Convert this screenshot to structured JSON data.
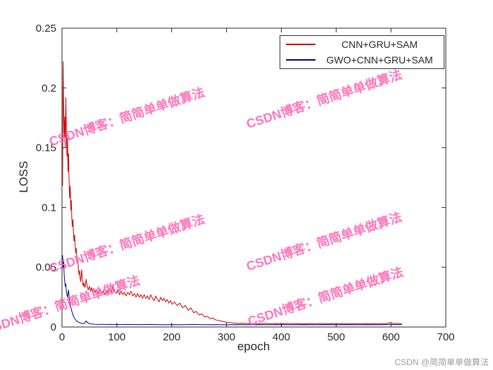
{
  "chart_data": {
    "type": "line",
    "title": "",
    "xlabel": "epoch",
    "ylabel": "LOSS",
    "xlim": [
      0,
      700
    ],
    "ylim": [
      0,
      0.25
    ],
    "grid": false,
    "legend_position": "top-right",
    "x_ticks": [
      0,
      100,
      200,
      300,
      400,
      500,
      600,
      700
    ],
    "x_tick_labels": [
      "0",
      "100",
      "200",
      "300",
      "400",
      "500",
      "600",
      "700"
    ],
    "y_ticks": [
      0,
      0.05,
      0.1,
      0.15,
      0.2,
      0.25
    ],
    "y_tick_labels": [
      "0",
      "0.05",
      "0.1",
      "0.15",
      "0.2",
      "0.25"
    ],
    "series": [
      {
        "name": "CNN+GRU+SAM",
        "color": "#cd0000",
        "points": [
          [
            1,
            0.118
          ],
          [
            2,
            0.222
          ],
          [
            3,
            0.185
          ],
          [
            4,
            0.158
          ],
          [
            5,
            0.176
          ],
          [
            6,
            0.15
          ],
          [
            7,
            0.192
          ],
          [
            8,
            0.165
          ],
          [
            9,
            0.143
          ],
          [
            10,
            0.158
          ],
          [
            11,
            0.13
          ],
          [
            12,
            0.145
          ],
          [
            13,
            0.122
          ],
          [
            14,
            0.108
          ],
          [
            15,
            0.118
          ],
          [
            16,
            0.098
          ],
          [
            17,
            0.106
          ],
          [
            18,
            0.09
          ],
          [
            19,
            0.084
          ],
          [
            20,
            0.09
          ],
          [
            21,
            0.078
          ],
          [
            22,
            0.072
          ],
          [
            23,
            0.077
          ],
          [
            24,
            0.068
          ],
          [
            25,
            0.062
          ],
          [
            26,
            0.066
          ],
          [
            27,
            0.058
          ],
          [
            28,
            0.053
          ],
          [
            29,
            0.056
          ],
          [
            30,
            0.048
          ],
          [
            31,
            0.044
          ],
          [
            32,
            0.047
          ],
          [
            33,
            0.041
          ],
          [
            34,
            0.038
          ],
          [
            35,
            0.044
          ],
          [
            36,
            0.048
          ],
          [
            37,
            0.04
          ],
          [
            38,
            0.036
          ],
          [
            39,
            0.034
          ],
          [
            40,
            0.037
          ],
          [
            42,
            0.033
          ],
          [
            44,
            0.04
          ],
          [
            46,
            0.034
          ],
          [
            48,
            0.031
          ],
          [
            50,
            0.034
          ],
          [
            52,
            0.03
          ],
          [
            54,
            0.033
          ],
          [
            56,
            0.029
          ],
          [
            58,
            0.032
          ],
          [
            60,
            0.029
          ],
          [
            63,
            0.031
          ],
          [
            66,
            0.028
          ],
          [
            69,
            0.031
          ],
          [
            72,
            0.028
          ],
          [
            75,
            0.03
          ],
          [
            78,
            0.027
          ],
          [
            81,
            0.03
          ],
          [
            84,
            0.028
          ],
          [
            87,
            0.032
          ],
          [
            90,
            0.029
          ],
          [
            93,
            0.035
          ],
          [
            96,
            0.03
          ],
          [
            99,
            0.028
          ],
          [
            102,
            0.031
          ],
          [
            105,
            0.027
          ],
          [
            108,
            0.03
          ],
          [
            111,
            0.027
          ],
          [
            114,
            0.029
          ],
          [
            117,
            0.026
          ],
          [
            120,
            0.029
          ],
          [
            123,
            0.027
          ],
          [
            126,
            0.03
          ],
          [
            129,
            0.026
          ],
          [
            132,
            0.028
          ],
          [
            135,
            0.025
          ],
          [
            138,
            0.028
          ],
          [
            141,
            0.025
          ],
          [
            144,
            0.027
          ],
          [
            147,
            0.024
          ],
          [
            150,
            0.027
          ],
          [
            153,
            0.024
          ],
          [
            156,
            0.026
          ],
          [
            159,
            0.023
          ],
          [
            162,
            0.027
          ],
          [
            165,
            0.024
          ],
          [
            168,
            0.022
          ],
          [
            171,
            0.026
          ],
          [
            174,
            0.023
          ],
          [
            177,
            0.021
          ],
          [
            180,
            0.025
          ],
          [
            183,
            0.022
          ],
          [
            186,
            0.024
          ],
          [
            189,
            0.021
          ],
          [
            192,
            0.023
          ],
          [
            195,
            0.02
          ],
          [
            198,
            0.022
          ],
          [
            201,
            0.019
          ],
          [
            205,
            0.021
          ],
          [
            210,
            0.018
          ],
          [
            215,
            0.02
          ],
          [
            220,
            0.016
          ],
          [
            225,
            0.018
          ],
          [
            230,
            0.014
          ],
          [
            235,
            0.016
          ],
          [
            240,
            0.012
          ],
          [
            245,
            0.013
          ],
          [
            250,
            0.01
          ],
          [
            255,
            0.011
          ],
          [
            260,
            0.0085
          ],
          [
            265,
            0.009
          ],
          [
            270,
            0.007
          ],
          [
            275,
            0.0075
          ],
          [
            280,
            0.006
          ],
          [
            285,
            0.0055
          ],
          [
            290,
            0.005
          ],
          [
            295,
            0.0045
          ],
          [
            300,
            0.004
          ],
          [
            310,
            0.0035
          ],
          [
            320,
            0.003
          ],
          [
            330,
            0.0032
          ],
          [
            340,
            0.0028
          ],
          [
            350,
            0.003
          ],
          [
            360,
            0.0028
          ],
          [
            370,
            0.003
          ],
          [
            380,
            0.0027
          ],
          [
            390,
            0.0029
          ],
          [
            400,
            0.0027
          ],
          [
            410,
            0.003
          ],
          [
            420,
            0.0027
          ],
          [
            430,
            0.0029
          ],
          [
            440,
            0.0026
          ],
          [
            450,
            0.0028
          ],
          [
            460,
            0.0026
          ],
          [
            470,
            0.0029
          ],
          [
            480,
            0.0026
          ],
          [
            490,
            0.0028
          ],
          [
            500,
            0.0026
          ],
          [
            510,
            0.0028
          ],
          [
            520,
            0.0026
          ],
          [
            530,
            0.0028
          ],
          [
            540,
            0.0026
          ],
          [
            550,
            0.0028
          ],
          [
            560,
            0.0026
          ],
          [
            570,
            0.0028
          ],
          [
            580,
            0.0026
          ],
          [
            590,
            0.0028
          ],
          [
            600,
            0.0038
          ],
          [
            605,
            0.0028
          ],
          [
            610,
            0.003
          ],
          [
            615,
            0.0027
          ],
          [
            620,
            0.0028
          ]
        ]
      },
      {
        "name": "GWO+CNN+GRU+SAM",
        "color": "#00008b",
        "points": [
          [
            1,
            0.06
          ],
          [
            2,
            0.05
          ],
          [
            3,
            0.056
          ],
          [
            4,
            0.044
          ],
          [
            5,
            0.038
          ],
          [
            6,
            0.034
          ],
          [
            7,
            0.036
          ],
          [
            8,
            0.03
          ],
          [
            9,
            0.027
          ],
          [
            10,
            0.025
          ],
          [
            11,
            0.028
          ],
          [
            12,
            0.031
          ],
          [
            13,
            0.025
          ],
          [
            14,
            0.021
          ],
          [
            15,
            0.019
          ],
          [
            16,
            0.017
          ],
          [
            17,
            0.015
          ],
          [
            18,
            0.013
          ],
          [
            19,
            0.012
          ],
          [
            20,
            0.01
          ],
          [
            22,
            0.008
          ],
          [
            24,
            0.0065
          ],
          [
            26,
            0.0055
          ],
          [
            28,
            0.0045
          ],
          [
            30,
            0.004
          ],
          [
            33,
            0.0035
          ],
          [
            36,
            0.003
          ],
          [
            40,
            0.0028
          ],
          [
            44,
            0.005
          ],
          [
            48,
            0.0032
          ],
          [
            52,
            0.0026
          ],
          [
            56,
            0.0024
          ],
          [
            60,
            0.0023
          ],
          [
            70,
            0.0022
          ],
          [
            80,
            0.0021
          ],
          [
            90,
            0.0022
          ],
          [
            100,
            0.002
          ],
          [
            120,
            0.0021
          ],
          [
            140,
            0.002
          ],
          [
            160,
            0.0021
          ],
          [
            180,
            0.0019
          ],
          [
            200,
            0.002
          ],
          [
            220,
            0.0019
          ],
          [
            240,
            0.0021
          ],
          [
            260,
            0.0019
          ],
          [
            280,
            0.002
          ],
          [
            300,
            0.0019
          ],
          [
            320,
            0.002
          ],
          [
            340,
            0.0019
          ],
          [
            360,
            0.002
          ],
          [
            380,
            0.0019
          ],
          [
            400,
            0.002
          ],
          [
            420,
            0.0019
          ],
          [
            440,
            0.002
          ],
          [
            460,
            0.0019
          ],
          [
            480,
            0.002
          ],
          [
            500,
            0.0019
          ],
          [
            520,
            0.002
          ],
          [
            540,
            0.0019
          ],
          [
            560,
            0.002
          ],
          [
            580,
            0.0019
          ],
          [
            600,
            0.0021
          ],
          [
            610,
            0.002
          ],
          [
            620,
            0.002
          ]
        ]
      }
    ]
  },
  "axis": {
    "xlabel": "epoch",
    "ylabel": "LOSS"
  },
  "watermark": {
    "text": "CSDN博客：简简单单做算法",
    "color": "#ff69b4"
  },
  "footer": {
    "credit": "CSDN @简简单单做算法"
  }
}
